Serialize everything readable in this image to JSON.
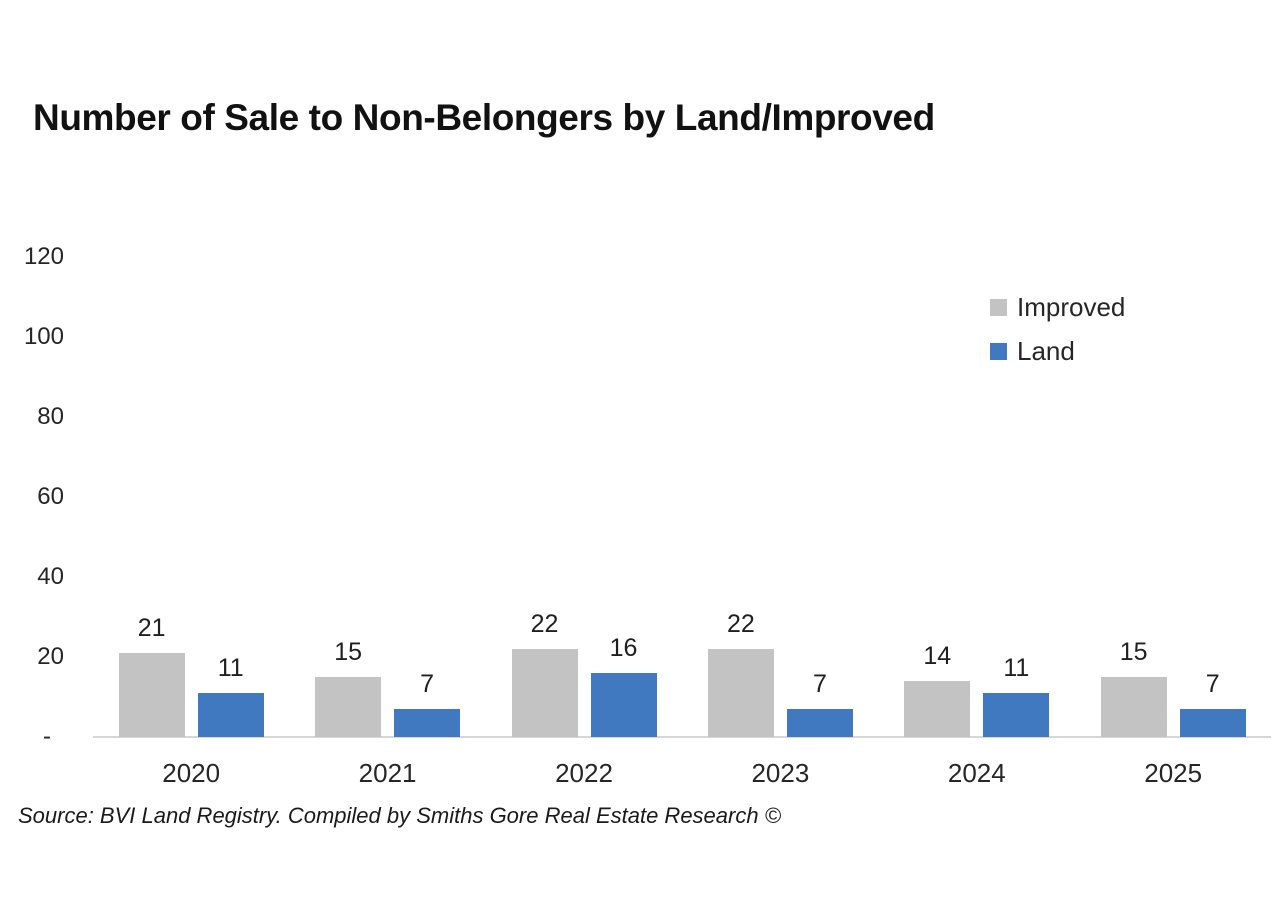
{
  "chart_data": {
    "type": "bar",
    "title": "Number of Sale to Non-Belongers by Land/Improved",
    "categories": [
      "2020",
      "2021",
      "2022",
      "2023",
      "2024",
      "2025"
    ],
    "series": [
      {
        "name": "Improved",
        "color": "#C3C3C3",
        "values": [
          21,
          15,
          22,
          22,
          14,
          15
        ]
      },
      {
        "name": "Land",
        "color": "#4179C0",
        "values": [
          11,
          7,
          16,
          7,
          11,
          7
        ]
      }
    ],
    "ylim": [
      0,
      120
    ],
    "y_tick_values": [
      0,
      20,
      40,
      60,
      80,
      100,
      120
    ],
    "y_tick_labels": [
      "-",
      "20",
      "40",
      "60",
      "80",
      "100",
      "120"
    ],
    "grid": false,
    "data_labels": true,
    "legend_position": "top-right",
    "xlabel": "",
    "ylabel": "",
    "source": "Source: BVI Land Registry. Compiled by Smiths Gore Real Estate Research ©"
  }
}
